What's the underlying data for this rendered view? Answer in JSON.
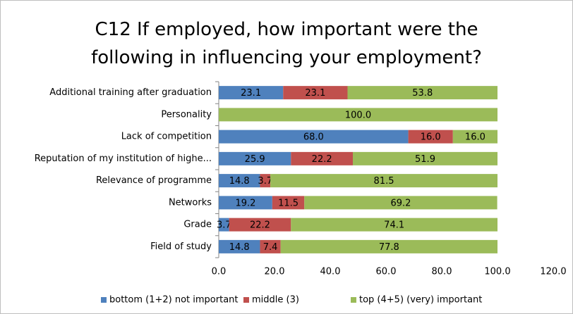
{
  "chart_data": {
    "type": "stacked_barh",
    "title": "C12 If employed, how important were the\nfollowing in influencing your employment?",
    "categories": [
      "Additional training after graduation",
      "Personality",
      "Lack of competition",
      "Reputation of my institution of highe...",
      "Relevance of programme",
      "Networks",
      "Grade",
      "Field of study"
    ],
    "series": [
      {
        "name": "bottom (1+2) not important",
        "color": "#4f81bd",
        "values": [
          23.1,
          0,
          68.0,
          25.9,
          14.8,
          19.2,
          3.7,
          14.8
        ],
        "value_labels": [
          "23.1",
          null,
          "68.0",
          "25.9",
          "14.8",
          "19.2",
          "3.7",
          "14.8"
        ]
      },
      {
        "name": "middle (3)",
        "color": "#c0504d",
        "values": [
          23.1,
          0,
          16.0,
          22.2,
          3.7,
          11.5,
          22.2,
          7.4
        ],
        "value_labels": [
          "23.1",
          null,
          "16.0",
          "22.2",
          "3.7",
          "11.5",
          "22.2",
          "7.4"
        ]
      },
      {
        "name": "top (4+5) (very) important",
        "color": "#9bbb59",
        "values": [
          53.8,
          100.0,
          16.0,
          51.9,
          81.5,
          69.2,
          74.1,
          77.8
        ],
        "value_labels": [
          "53.8",
          "100.0",
          "16.0",
          "51.9",
          "81.5",
          "69.2",
          "74.1",
          "77.8"
        ]
      }
    ],
    "xlim": [
      0,
      120
    ],
    "xticks": [
      {
        "value": 0,
        "label": "0.0"
      },
      {
        "value": 20,
        "label": "20.0"
      },
      {
        "value": 40,
        "label": "40.0"
      },
      {
        "value": 60,
        "label": "60.0"
      },
      {
        "value": 80,
        "label": "80.0"
      },
      {
        "value": 100,
        "label": "100.0"
      },
      {
        "value": 120,
        "label": "120.0"
      }
    ],
    "legend": "bottom"
  }
}
